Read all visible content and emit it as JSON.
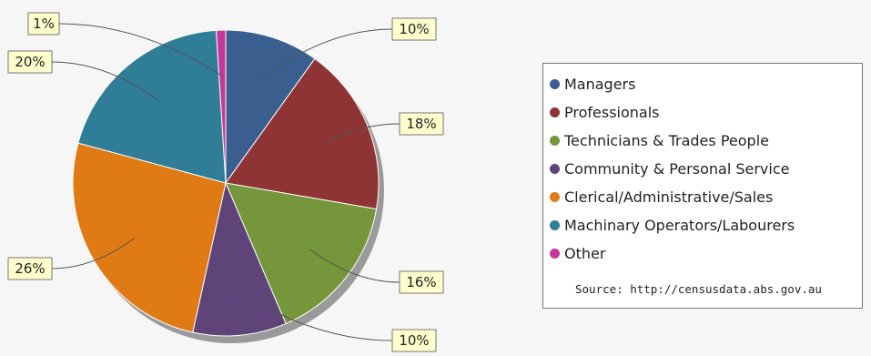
{
  "chart_data": {
    "type": "pie",
    "categories": [
      "Managers",
      "Professionals",
      "Technicians & Trades People",
      "Community & Personal Service",
      "Clerical/Administrative/Sales",
      "Machinary Operators/Labourers",
      "Other"
    ],
    "values": [
      10,
      18,
      16,
      10,
      26,
      20,
      1
    ],
    "labels": [
      "10%",
      "18%",
      "16%",
      "10%",
      "26%",
      "20%",
      "1%"
    ],
    "colors": [
      "#3a5f8f",
      "#8e3434",
      "#75963a",
      "#5f447a",
      "#e07a15",
      "#2f7d96",
      "#c8379b"
    ],
    "legend_position": "right",
    "source": "Source: http://censusdata.abs.gov.au"
  }
}
